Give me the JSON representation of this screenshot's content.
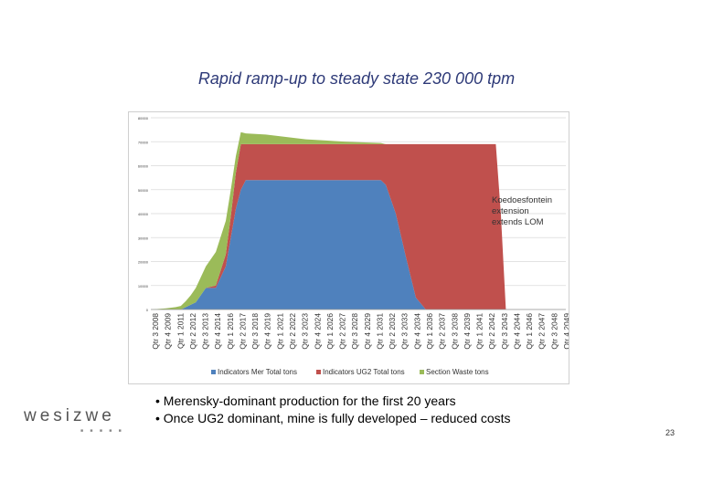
{
  "slide": {
    "title": "Rapid ramp-up to steady state 230 000 tpm",
    "bullets": [
      "• Merensky-dominant production for the first 20 years",
      "• Once UG2 dominant, mine is fully developed – reduced costs"
    ],
    "page_number": "23",
    "logo_text": "wesizwe"
  },
  "annotation": {
    "lines": [
      "Koedoesfontein",
      "extension",
      "extends LOM"
    ]
  },
  "chart_data": {
    "type": "area",
    "stacked": true,
    "title": "",
    "xlabel": "",
    "ylabel": "",
    "grid": true,
    "legend_position": "bottom",
    "ylim": [
      0,
      80000
    ],
    "y_ticks": [
      "0",
      "10000",
      "20000",
      "30000",
      "40000",
      "50000",
      "60000",
      "70000",
      "80000"
    ],
    "x_tick_labels": [
      "Qtr 3 2008",
      "Qtr 4 2009",
      "Qtr 1 2011",
      "Qtr 2 2012",
      "Qtr 3 2013",
      "Qtr 4 2014",
      "Qtr 1 2016",
      "Qtr 2 2017",
      "Qtr 3 2018",
      "Qtr 4 2019",
      "Qtr 1 2021",
      "Qtr 2 2022",
      "Qtr 3 2023",
      "Qtr 4 2024",
      "Qtr 1 2026",
      "Qtr 2 2027",
      "Qtr 3 2028",
      "Qtr 4 2029",
      "Qtr 1 2031",
      "Qtr 2 2032",
      "Qtr 3 2033",
      "Qtr 4 2034",
      "Qtr 1 2036",
      "Qtr 2 2037",
      "Qtr 3 2038",
      "Qtr 4 2039",
      "Qtr 1 2041",
      "Qtr 2 2042",
      "Qtr 3 2043",
      "Qtr 4 2044",
      "Qtr 1 2046",
      "Qtr 2 2047",
      "Qtr 3 2048",
      "Qtr 4 2049"
    ],
    "x": [
      2008.5,
      2010,
      2011,
      2011.5,
      2012,
      2012.5,
      2013,
      2014,
      2015,
      2016,
      2016.5,
      2017,
      2017.5,
      2018,
      2020,
      2022,
      2024,
      2026,
      2028,
      2031.5,
      2032,
      2033,
      2034,
      2035,
      2036,
      2040,
      2042.5,
      2043,
      2043.5,
      2044,
      2050
    ],
    "series": [
      {
        "name": "Indicators Mer Total tons",
        "color": "#4f81bd",
        "values": [
          0,
          0,
          0,
          0,
          1000,
          2000,
          3000,
          9000,
          9000,
          18000,
          30000,
          42000,
          50000,
          54000,
          54000,
          54000,
          54000,
          54000,
          54000,
          54000,
          52000,
          40000,
          22000,
          5000,
          0,
          0,
          0,
          0,
          0,
          0,
          0
        ]
      },
      {
        "name": "Indicators UG2 Total tons",
        "color": "#c0504d",
        "values": [
          0,
          0,
          0,
          0,
          0,
          0,
          0,
          0,
          1000,
          5000,
          9000,
          15000,
          19000,
          15000,
          15000,
          15000,
          15000,
          15000,
          15000,
          15000,
          17000,
          29000,
          47000,
          64000,
          69000,
          69000,
          69000,
          69000,
          40000,
          0,
          0
        ]
      },
      {
        "name": "Section Waste tons",
        "color": "#9bbb59",
        "values": [
          0,
          500,
          1000,
          1500,
          2500,
          4000,
          6000,
          9000,
          14000,
          14000,
          11000,
          7000,
          5000,
          4500,
          4000,
          3000,
          2000,
          1500,
          1000,
          500,
          0,
          0,
          0,
          0,
          0,
          0,
          0,
          0,
          0,
          0,
          0
        ]
      }
    ]
  }
}
